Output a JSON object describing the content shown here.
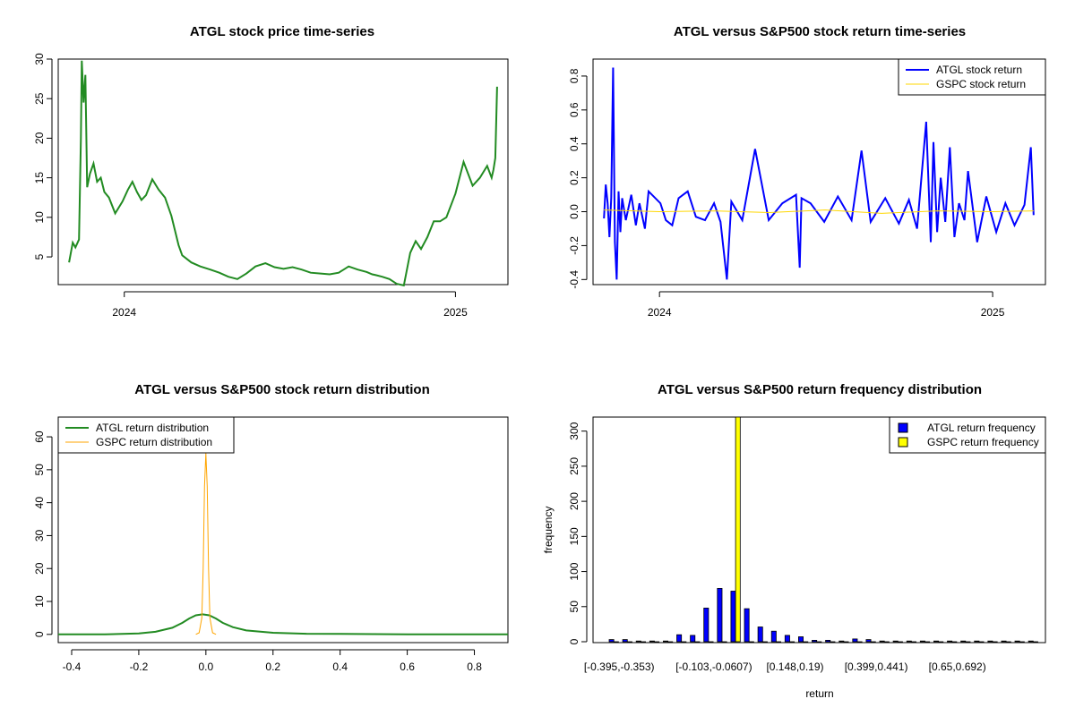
{
  "chart_data": [
    {
      "type": "line",
      "title": "ATGL stock price time-series",
      "xlabel": "",
      "ylabel": "",
      "x_ticks": [
        "2024",
        "2025"
      ],
      "y_ticks": [
        "5",
        "10",
        "15",
        "20",
        "25",
        "30"
      ],
      "ylim": [
        1.5,
        30
      ],
      "color": "#228B22",
      "series": [
        {
          "x": [
            "2023-11-01",
            "2023-11-05",
            "2023-11-08",
            "2023-11-12",
            "2023-11-14",
            "2023-11-15",
            "2023-11-17",
            "2023-11-19",
            "2023-11-21",
            "2023-11-24",
            "2023-11-28",
            "2023-12-02",
            "2023-12-06",
            "2023-12-10",
            "2023-12-15",
            "2023-12-22",
            "2023-12-30",
            "2024-01-05",
            "2024-01-10",
            "2024-01-15",
            "2024-01-20",
            "2024-01-25",
            "2024-02-01",
            "2024-02-08",
            "2024-02-15",
            "2024-02-22",
            "2024-03-01",
            "2024-03-05",
            "2024-03-15",
            "2024-03-25",
            "2024-04-05",
            "2024-04-15",
            "2024-04-25",
            "2024-05-05",
            "2024-05-15",
            "2024-05-25",
            "2024-06-05",
            "2024-06-15",
            "2024-06-25",
            "2024-07-05",
            "2024-07-15",
            "2024-07-25",
            "2024-08-05",
            "2024-08-15",
            "2024-08-25",
            "2024-09-05",
            "2024-09-15",
            "2024-09-25",
            "2024-10-01",
            "2024-10-05",
            "2024-10-12",
            "2024-10-20",
            "2024-10-28",
            "2024-11-05",
            "2024-11-12",
            "2024-11-18",
            "2024-11-24",
            "2024-12-01",
            "2024-12-08",
            "2024-12-15",
            "2024-12-22",
            "2025-01-01",
            "2025-01-10",
            "2025-01-20",
            "2025-01-28",
            "2025-02-05",
            "2025-02-10",
            "2025-02-12",
            "2025-02-14",
            "2025-02-16"
          ],
          "y": [
            4.3,
            6.8,
            6.2,
            7.2,
            20,
            29.8,
            24.5,
            28,
            13.8,
            15.5,
            16.8,
            14.5,
            15,
            13.2,
            12.5,
            10.5,
            12,
            13.5,
            14.5,
            13.2,
            12.2,
            12.8,
            14.8,
            13.5,
            12.5,
            10.2,
            6.5,
            5.2,
            4.3,
            3.8,
            3.4,
            3.0,
            2.5,
            2.2,
            2.9,
            3.8,
            4.2,
            3.7,
            3.5,
            3.7,
            3.4,
            3.0,
            2.9,
            2.8,
            3.0,
            3.8,
            3.4,
            3.1,
            2.8,
            2.7,
            2.5,
            2.2,
            1.6,
            1.4,
            5.5,
            7.0,
            6.0,
            7.5,
            9.5,
            9.5,
            10.0,
            13.0,
            17.0,
            14.0,
            15.0,
            16.5,
            15.0,
            16.0,
            17.5,
            26.5
          ]
        }
      ]
    },
    {
      "type": "line",
      "title": "ATGL versus S&P500 stock return time-series",
      "xlabel": "",
      "ylabel": "",
      "x_ticks": [
        "2024",
        "2025"
      ],
      "y_ticks": [
        "-0.4",
        "-0.2",
        "0.0",
        "0.2",
        "0.4",
        "0.6",
        "0.8"
      ],
      "ylim": [
        -0.43,
        0.9
      ],
      "legend": "top-right",
      "series": [
        {
          "name": "ATGL stock return",
          "color": "#0000FF",
          "x": [
            "2023-11-01",
            "2023-11-03",
            "2023-11-05",
            "2023-11-07",
            "2023-11-09",
            "2023-11-11",
            "2023-11-13",
            "2023-11-15",
            "2023-11-17",
            "2023-11-19",
            "2023-11-21",
            "2023-11-25",
            "2023-12-01",
            "2023-12-06",
            "2023-12-10",
            "2023-12-16",
            "2023-12-20",
            "2024-01-02",
            "2024-01-08",
            "2024-01-15",
            "2024-01-22",
            "2024-02-01",
            "2024-02-10",
            "2024-02-20",
            "2024-03-01",
            "2024-03-08",
            "2024-03-15",
            "2024-03-20",
            "2024-04-01",
            "2024-04-15",
            "2024-04-30",
            "2024-05-15",
            "2024-05-30",
            "2024-06-03",
            "2024-06-05",
            "2024-06-15",
            "2024-06-30",
            "2024-07-15",
            "2024-07-30",
            "2024-08-10",
            "2024-08-20",
            "2024-09-05",
            "2024-09-20",
            "2024-10-01",
            "2024-10-10",
            "2024-10-20",
            "2024-10-25",
            "2024-10-28",
            "2024-11-01",
            "2024-11-05",
            "2024-11-10",
            "2024-11-15",
            "2024-11-20",
            "2024-11-25",
            "2024-12-01",
            "2024-12-05",
            "2024-12-15",
            "2024-12-25",
            "2025-01-05",
            "2025-01-15",
            "2025-01-25",
            "2025-02-05",
            "2025-02-12",
            "2025-02-15"
          ],
          "y": [
            -0.04,
            0.16,
            0.05,
            -0.15,
            0.08,
            0.85,
            -0.18,
            -0.4,
            0.12,
            -0.12,
            0.08,
            -0.05,
            0.1,
            -0.08,
            0.05,
            -0.1,
            0.12,
            0.05,
            -0.05,
            -0.08,
            0.08,
            0.12,
            -0.03,
            -0.05,
            0.05,
            -0.06,
            -0.4,
            0.06,
            -0.05,
            0.37,
            -0.05,
            0.05,
            0.1,
            -0.33,
            0.08,
            0.05,
            -0.06,
            0.09,
            -0.05,
            0.36,
            -0.06,
            0.08,
            -0.07,
            0.07,
            -0.1,
            0.53,
            -0.18,
            0.41,
            -0.12,
            0.2,
            -0.06,
            0.38,
            -0.15,
            0.05,
            -0.05,
            0.24,
            -0.18,
            0.09,
            -0.12,
            0.05,
            -0.08,
            0.04,
            0.38,
            -0.02
          ]
        },
        {
          "name": "GSPC stock return",
          "color": "#FFD700",
          "x": [
            "2023-11-01",
            "2024-01-01",
            "2024-03-01",
            "2024-05-01",
            "2024-07-01",
            "2024-09-01",
            "2024-11-01",
            "2025-01-01",
            "2025-02-15"
          ],
          "y": [
            0.01,
            0.0,
            0.005,
            -0.005,
            0.01,
            -0.01,
            0.005,
            0.0,
            0.005
          ]
        }
      ]
    },
    {
      "type": "line",
      "title": "ATGL versus S&P500 stock return distribution",
      "xlabel": "",
      "ylabel": "",
      "x_ticks": [
        "-0.4",
        "-0.2",
        "0.0",
        "0.2",
        "0.4",
        "0.6",
        "0.8"
      ],
      "y_ticks": [
        "0",
        "10",
        "20",
        "30",
        "40",
        "50",
        "60"
      ],
      "xlim": [
        -0.44,
        0.9
      ],
      "ylim": [
        -2.5,
        66
      ],
      "legend": "top-left",
      "series": [
        {
          "name": "ATGL return distribution",
          "color": "#228B22",
          "x": [
            -0.44,
            -0.3,
            -0.2,
            -0.15,
            -0.1,
            -0.07,
            -0.05,
            -0.03,
            -0.01,
            0.01,
            0.03,
            0.05,
            0.08,
            0.12,
            0.2,
            0.3,
            0.45,
            0.6,
            0.9
          ],
          "y": [
            0,
            0,
            0.3,
            0.8,
            2.0,
            3.5,
            4.8,
            5.8,
            6.1,
            5.8,
            4.8,
            3.5,
            2.2,
            1.2,
            0.5,
            0.2,
            0.1,
            0,
            0
          ]
        },
        {
          "name": "GSPC return distribution",
          "color": "#FFA500",
          "x": [
            -0.03,
            -0.02,
            -0.012,
            -0.008,
            -0.004,
            0.0,
            0.004,
            0.008,
            0.012,
            0.02,
            0.03
          ],
          "y": [
            0,
            0.5,
            5,
            20,
            45,
            55,
            45,
            20,
            5,
            0.5,
            0
          ]
        }
      ]
    },
    {
      "type": "bar",
      "title": "ATGL versus S&P500 return frequency distribution",
      "xlabel": "return",
      "ylabel": "frequency",
      "x_ticks": [
        "[-0.395,-0.353)",
        "[-0.103,-0.0607)",
        "[0.148,0.19)",
        "[0.399,0.441)",
        "[0.65,0.692)"
      ],
      "y_ticks": [
        "0",
        "50",
        "100",
        "150",
        "200",
        "250",
        "300"
      ],
      "ylim": [
        0,
        320
      ],
      "legend": "top-right",
      "series": [
        {
          "name": "ATGL return frequency",
          "color": "#0000FF",
          "values": [
            3,
            3,
            1,
            1,
            1,
            10,
            9,
            48,
            76,
            72,
            47,
            21,
            15,
            9,
            7,
            2,
            2,
            1,
            4,
            3,
            1,
            1,
            1,
            1,
            1,
            1,
            1,
            1,
            1,
            1,
            1,
            1
          ]
        },
        {
          "name": "GSPC return frequency",
          "color": "#FFFF00",
          "values": [
            0,
            0,
            0,
            0,
            0,
            0,
            0,
            0,
            0,
            320,
            0,
            0,
            0,
            0,
            0,
            0,
            0,
            0,
            0,
            0,
            0,
            0,
            0,
            0,
            0,
            0,
            0,
            0,
            0,
            0,
            0,
            0
          ]
        }
      ]
    }
  ]
}
